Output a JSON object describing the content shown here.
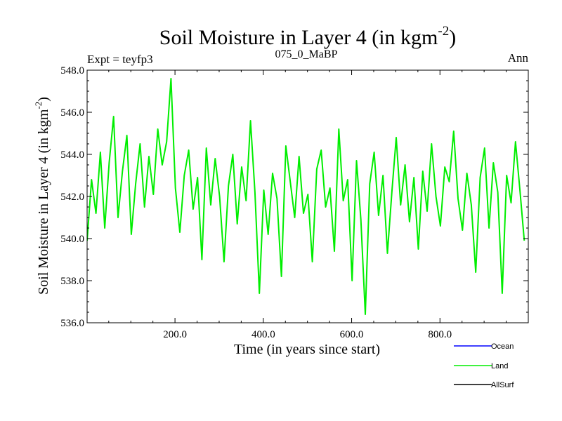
{
  "chart_data": {
    "type": "line",
    "title_main": "Soil Moisture in Layer 4 (in kgm",
    "title_sup": "-2",
    "title_close": ")",
    "subtitle_left": "Expt = teyfp3",
    "subtitle_center": "075_0_MaBP",
    "subtitle_right": "Ann",
    "xlabel": "Time (in years since start)",
    "ylabel_main": "Soil Moisture in Layer 4 (in kgm",
    "ylabel_sup": "-2",
    "ylabel_close": ")",
    "xlim": [
      1,
      1000
    ],
    "ylim": [
      536.0,
      548.0
    ],
    "x_ticks": [
      200,
      400,
      600,
      800
    ],
    "x_tick_labels": [
      "200.0",
      "400.0",
      "600.0",
      "800.0"
    ],
    "y_ticks": [
      536,
      538,
      540,
      542,
      544,
      546,
      548
    ],
    "y_tick_labels": [
      "536.0",
      "538.0",
      "540.0",
      "542.0",
      "544.0",
      "546.0",
      "548.0"
    ],
    "grid": false,
    "legend_position": "bottom-right",
    "series": [
      {
        "name": "Ocean",
        "color": "#0000ff",
        "values": []
      },
      {
        "name": "Land",
        "color": "#00ee00",
        "x_start": 1,
        "x_step": 10,
        "values": [
          539.9,
          542.8,
          541.2,
          544.1,
          540.5,
          543.6,
          545.8,
          541.0,
          543.2,
          544.9,
          540.2,
          542.6,
          544.5,
          541.5,
          543.9,
          542.1,
          545.2,
          543.5,
          544.6,
          547.6,
          542.4,
          540.3,
          543.0,
          544.2,
          541.4,
          542.9,
          539.0,
          544.3,
          541.6,
          543.8,
          542.0,
          538.9,
          542.5,
          544.0,
          540.7,
          543.4,
          541.8,
          545.6,
          542.2,
          537.4,
          542.3,
          540.2,
          543.1,
          541.9,
          538.2,
          544.4,
          542.7,
          541.0,
          543.9,
          541.2,
          542.1,
          538.9,
          543.3,
          544.2,
          541.5,
          542.4,
          539.4,
          545.2,
          541.8,
          542.8,
          538.0,
          543.7,
          540.9,
          536.4,
          542.6,
          544.1,
          541.1,
          543.0,
          539.3,
          542.2,
          544.8,
          541.6,
          543.5,
          540.8,
          542.9,
          539.5,
          543.2,
          541.3,
          544.5,
          542.0,
          540.6,
          543.4,
          542.7,
          545.1,
          541.9,
          540.4,
          543.1,
          541.6,
          538.4,
          542.9,
          544.3,
          540.5,
          543.6,
          542.2,
          537.4,
          543.0,
          541.7,
          544.6,
          542.3,
          539.9
        ]
      },
      {
        "name": "AllSurf",
        "color": "#000000",
        "values": []
      }
    ]
  }
}
